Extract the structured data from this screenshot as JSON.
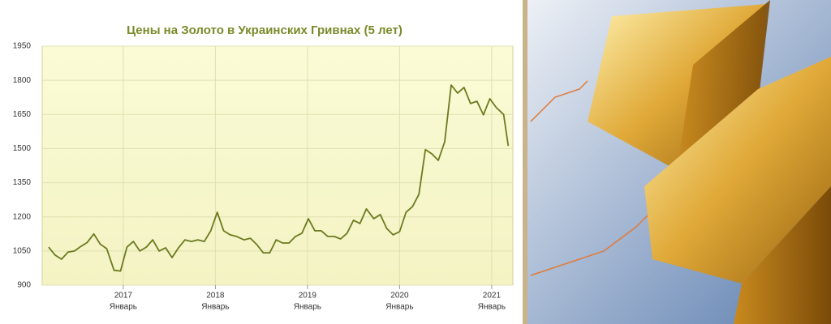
{
  "chart_data": {
    "type": "line",
    "title": "Цены на Золото в Украинских Гривнах (5 лет)",
    "x": [
      2016.19,
      2016.26,
      2016.33,
      2016.4,
      2016.47,
      2016.54,
      2016.61,
      2016.68,
      2016.75,
      2016.82,
      2016.9,
      2016.97,
      2017.04,
      2017.11,
      2017.18,
      2017.25,
      2017.32,
      2017.39,
      2017.46,
      2017.53,
      2017.6,
      2017.67,
      2017.74,
      2017.81,
      2017.88,
      2017.95,
      2018.02,
      2018.09,
      2018.16,
      2018.23,
      2018.31,
      2018.38,
      2018.45,
      2018.52,
      2018.59,
      2018.66,
      2018.73,
      2018.8,
      2018.87,
      2018.94,
      2019.01,
      2019.08,
      2019.15,
      2019.22,
      2019.29,
      2019.36,
      2019.43,
      2019.5,
      2019.57,
      2019.64,
      2019.72,
      2019.79,
      2019.86,
      2019.93,
      2020.0,
      2020.07,
      2020.14,
      2020.21,
      2020.28,
      2020.35,
      2020.42,
      2020.49,
      2020.56,
      2020.63,
      2020.7,
      2020.77,
      2020.84,
      2020.91,
      2020.98,
      2021.05,
      2021.13,
      2021.18
    ],
    "values": [
      1067,
      1032,
      1014,
      1045,
      1050,
      1070,
      1088,
      1125,
      1080,
      1060,
      965,
      962,
      1067,
      1092,
      1050,
      1067,
      1099,
      1050,
      1064,
      1021,
      1064,
      1099,
      1092,
      1099,
      1092,
      1139,
      1220,
      1139,
      1121,
      1114,
      1099,
      1106,
      1078,
      1042,
      1042,
      1099,
      1085,
      1085,
      1114,
      1128,
      1192,
      1139,
      1139,
      1114,
      1114,
      1103,
      1128,
      1185,
      1171,
      1235,
      1192,
      1210,
      1149,
      1121,
      1135,
      1220,
      1245,
      1299,
      1495,
      1477,
      1448,
      1530,
      1779,
      1744,
      1769,
      1698,
      1708,
      1648,
      1719,
      1680,
      1650,
      1512
    ],
    "color": "#6b7a1f",
    "xlim": [
      2016.12,
      2021.23
    ],
    "xticks": [
      2017,
      2018,
      2019,
      2020,
      2021
    ],
    "xtick_sublabel": "Январь",
    "ylim": [
      900,
      1950
    ],
    "yticks": [
      900,
      1050,
      1200,
      1350,
      1500,
      1650,
      1800,
      1950
    ],
    "grid": true
  }
}
